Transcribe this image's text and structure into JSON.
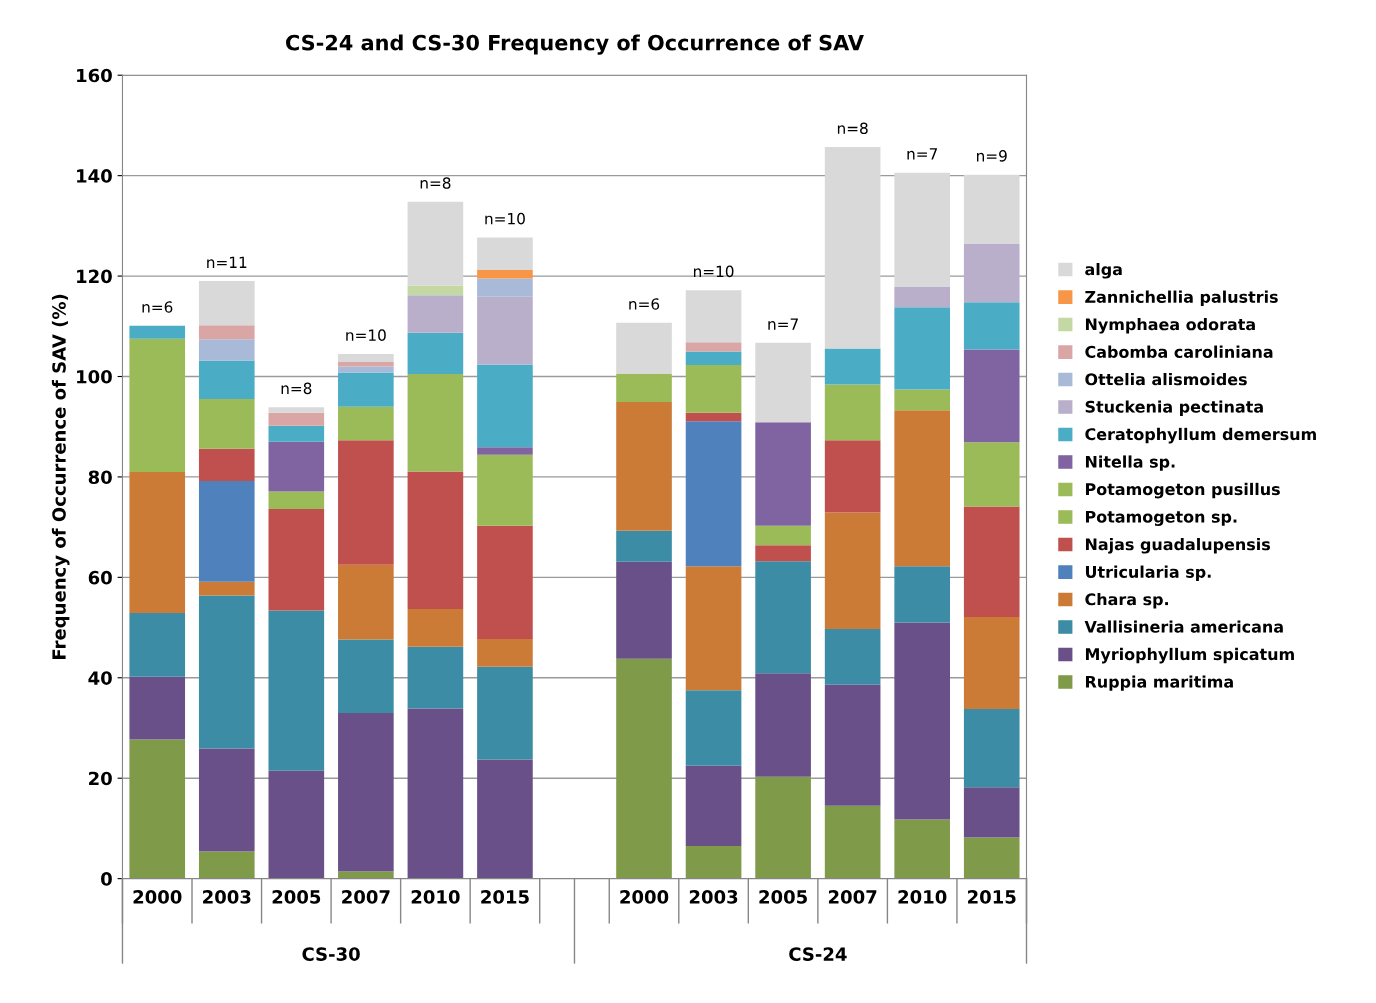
{
  "chart_data": {
    "type": "bar",
    "stacked": true,
    "title": "CS-24 and CS-30 Frequency of Occurrence of SAV",
    "ylabel": "Frequency of Occurrence of SAV (%)",
    "categories": [
      "2000",
      "2003",
      "2005",
      "2007",
      "2010",
      "2015",
      null,
      "2000",
      "2003",
      "2005",
      "2007",
      "2010",
      "2015"
    ],
    "ylim": [
      0,
      160
    ],
    "yticks": [
      0,
      20,
      40,
      60,
      80,
      100,
      120,
      140,
      160
    ],
    "grid": "y",
    "legend": "right",
    "annotations": [
      "n=6",
      "n=11",
      "n=8",
      "n=10",
      "n=8",
      "n=10",
      "n=6",
      "n=10",
      "n=7",
      "n=8",
      "n=7",
      "n=9",
      "CS-30",
      "CS-24"
    ],
    "series": [
      {
        "name": "Ruppia maritima",
        "color": "#7f9a48",
        "values": [
          27.7,
          5.4,
          null,
          1.4,
          null,
          null,
          null,
          43.8,
          6.5,
          20.3,
          14.5,
          11.8,
          8.2
        ]
      },
      {
        "name": "Myriophyllum spicatum",
        "color": "#6a5088",
        "values": [
          12.5,
          20.5,
          21.5,
          31.6,
          33.9,
          23.7,
          null,
          19.3,
          16.0,
          20.6,
          24.1,
          39.2,
          10.0
        ]
      },
      {
        "name": "Vallisineria americana",
        "color": "#3b8ca4",
        "values": [
          12.7,
          30.5,
          31.9,
          14.6,
          12.3,
          18.5,
          null,
          6.2,
          15.0,
          22.3,
          11.1,
          11.2,
          15.6
        ]
      },
      {
        "name": "Chara sp.",
        "color": "#cc7b37",
        "values": [
          28.1,
          2.7,
          null,
          14.9,
          7.5,
          5.5,
          null,
          25.6,
          24.7,
          null,
          23.2,
          31.1,
          18.3
        ]
      },
      {
        "name": "Utricularia sp.",
        "color": "#4f81bd",
        "values": [
          null,
          20.1,
          null,
          null,
          null,
          null,
          null,
          null,
          28.9,
          null,
          null,
          null,
          null
        ]
      },
      {
        "name": "Najas guadalupensis",
        "color": "#c0504d",
        "values": [
          null,
          6.4,
          20.2,
          24.8,
          27.4,
          22.6,
          null,
          null,
          1.7,
          3.2,
          14.4,
          null,
          22.0
        ]
      },
      {
        "name": "Potamogeton sp.",
        "color": "#9bbb59",
        "values": [
          26.5,
          9.9,
          3.5,
          6.7,
          19.4,
          14.1,
          null,
          5.6,
          9.5,
          3.9,
          11.1,
          4.1,
          12.8
        ]
      },
      {
        "name": "Potamogeton pusillus",
        "color": "#9bbb59",
        "values": [
          null,
          null,
          null,
          null,
          null,
          null,
          null,
          null,
          null,
          null,
          null,
          null,
          null
        ]
      },
      {
        "name": "Nitella sp.",
        "color": "#8064a2",
        "values": [
          null,
          null,
          9.9,
          null,
          null,
          1.5,
          null,
          null,
          null,
          20.6,
          null,
          null,
          18.5
        ]
      },
      {
        "name": "Ceratophyllum demersum",
        "color": "#4bacc6",
        "values": [
          2.6,
          7.7,
          3.2,
          6.8,
          8.2,
          16.5,
          null,
          null,
          2.7,
          null,
          7.2,
          16.4,
          9.4
        ]
      },
      {
        "name": "Stuckenia pectinata",
        "color": "#b9afcb",
        "values": [
          null,
          null,
          null,
          null,
          7.5,
          13.5,
          null,
          null,
          null,
          null,
          null,
          4.1,
          11.7
        ]
      },
      {
        "name": "Ottelia alismoides",
        "color": "#a9bad8",
        "values": [
          null,
          4.2,
          null,
          1.2,
          null,
          3.6,
          null,
          null,
          null,
          null,
          null,
          null,
          null
        ]
      },
      {
        "name": "Cabomba caroliniana",
        "color": "#d9a5a5",
        "values": [
          null,
          2.8,
          2.6,
          0.9,
          null,
          null,
          null,
          null,
          1.8,
          null,
          null,
          null,
          null
        ]
      },
      {
        "name": "Nymphaea odorata",
        "color": "#c4d8a4",
        "values": [
          null,
          null,
          null,
          null,
          1.9,
          null,
          null,
          null,
          null,
          null,
          null,
          null,
          null
        ]
      },
      {
        "name": "Zannichellia palustris",
        "color": "#f79646",
        "values": [
          null,
          null,
          null,
          null,
          null,
          1.7,
          null,
          null,
          null,
          null,
          null,
          null,
          null
        ]
      },
      {
        "name": "alga",
        "color": "#d9d9d9",
        "values": [
          null,
          8.8,
          1.1,
          1.6,
          16.7,
          6.5,
          null,
          10.2,
          10.4,
          15.8,
          40.1,
          22.7,
          13.7
        ]
      }
    ]
  }
}
